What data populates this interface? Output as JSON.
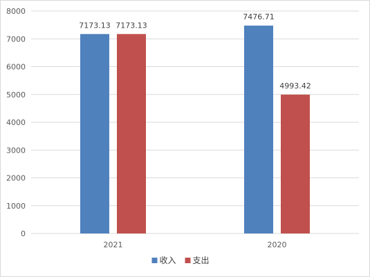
{
  "chart_data": {
    "type": "bar",
    "categories": [
      "2021",
      "2020"
    ],
    "series": [
      {
        "name": "收入",
        "values": [
          7173.13,
          7476.71
        ],
        "color": "#4f81bd"
      },
      {
        "name": "支出",
        "values": [
          7173.13,
          4993.42
        ],
        "color": "#c0504d"
      }
    ],
    "data_labels": [
      [
        "7173.13",
        "7476.71"
      ],
      [
        "7173.13",
        "4993.42"
      ]
    ],
    "ylim": [
      0,
      8000
    ],
    "yticks": [
      "0",
      "1000",
      "2000",
      "3000",
      "4000",
      "5000",
      "6000",
      "7000",
      "8000"
    ],
    "grid": true,
    "legend_position": "bottom-center",
    "gridline_color": "#d9d9d9"
  }
}
